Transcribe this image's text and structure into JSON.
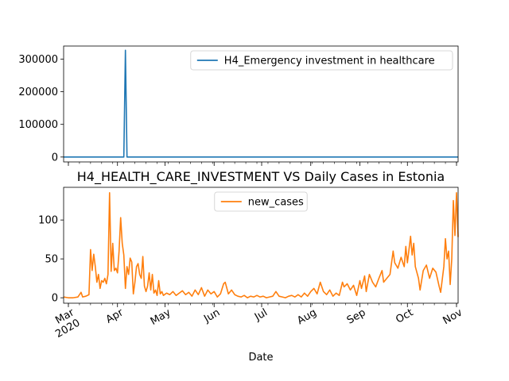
{
  "chart_data": [
    {
      "type": "line",
      "title": "",
      "xlabel": "",
      "ylabel": "",
      "ylim": [
        -15000,
        340000
      ],
      "yticks": [
        0,
        100000,
        200000,
        300000
      ],
      "ytick_labels": [
        "0",
        "100000",
        "200000",
        "300000"
      ],
      "legend": "top-right",
      "grid": false,
      "series": [
        {
          "name": "H4_Emergency investment in healthcare",
          "color": "#1f77b4",
          "points": [
            [
              "2020-02-27",
              0
            ],
            [
              "2020-04-05",
              0
            ],
            [
              "2020-04-06",
              327000
            ],
            [
              "2020-04-07",
              0
            ],
            [
              "2020-11-02",
              0
            ]
          ]
        }
      ]
    },
    {
      "type": "line",
      "title": "H4_HEALTH_CARE_INVESTMENT VS Daily Cases in Estonia",
      "xlabel": "Date",
      "ylabel": "",
      "ylim": [
        -7,
        142
      ],
      "yticks": [
        0,
        50,
        100
      ],
      "ytick_labels": [
        "0",
        "50",
        "100"
      ],
      "xlim": [
        "2020-02-27",
        "2020-11-02"
      ],
      "xticks": [
        "2020-03-01",
        "2020-04-01",
        "2020-05-01",
        "2020-06-01",
        "2020-07-01",
        "2020-08-01",
        "2020-09-01",
        "2020-10-01",
        "2020-11-01"
      ],
      "xtick_labels": [
        "Mar\n2020",
        "Apr",
        "May",
        "Jun",
        "Jul",
        "Aug",
        "Sep",
        "Oct",
        "Nov"
      ],
      "legend": "top-center",
      "grid": false,
      "series": [
        {
          "name": "new_cases",
          "color": "#ff7f0e",
          "points": [
            [
              "2020-02-27",
              1
            ],
            [
              "2020-03-01",
              0
            ],
            [
              "2020-03-04",
              0
            ],
            [
              "2020-03-07",
              1
            ],
            [
              "2020-03-09",
              7
            ],
            [
              "2020-03-10",
              1
            ],
            [
              "2020-03-12",
              2
            ],
            [
              "2020-03-14",
              4
            ],
            [
              "2020-03-15",
              62
            ],
            [
              "2020-03-16",
              35
            ],
            [
              "2020-03-17",
              56
            ],
            [
              "2020-03-18",
              40
            ],
            [
              "2020-03-19",
              20
            ],
            [
              "2020-03-20",
              30
            ],
            [
              "2020-03-21",
              12
            ],
            [
              "2020-03-22",
              22
            ],
            [
              "2020-03-23",
              20
            ],
            [
              "2020-03-24",
              25
            ],
            [
              "2020-03-25",
              18
            ],
            [
              "2020-03-26",
              30
            ],
            [
              "2020-03-27",
              135
            ],
            [
              "2020-03-28",
              34
            ],
            [
              "2020-03-29",
              70
            ],
            [
              "2020-03-30",
              35
            ],
            [
              "2020-03-31",
              38
            ],
            [
              "2020-04-01",
              32
            ],
            [
              "2020-04-02",
              60
            ],
            [
              "2020-04-03",
              103
            ],
            [
              "2020-04-04",
              70
            ],
            [
              "2020-04-05",
              55
            ],
            [
              "2020-04-06",
              12
            ],
            [
              "2020-04-07",
              40
            ],
            [
              "2020-04-08",
              30
            ],
            [
              "2020-04-09",
              51
            ],
            [
              "2020-04-10",
              46
            ],
            [
              "2020-04-11",
              5
            ],
            [
              "2020-04-12",
              20
            ],
            [
              "2020-04-13",
              40
            ],
            [
              "2020-04-14",
              44
            ],
            [
              "2020-04-15",
              30
            ],
            [
              "2020-04-16",
              25
            ],
            [
              "2020-04-17",
              53
            ],
            [
              "2020-04-18",
              15
            ],
            [
              "2020-04-19",
              8
            ],
            [
              "2020-04-20",
              15
            ],
            [
              "2020-04-21",
              32
            ],
            [
              "2020-04-22",
              10
            ],
            [
              "2020-04-23",
              30
            ],
            [
              "2020-04-24",
              6
            ],
            [
              "2020-04-25",
              10
            ],
            [
              "2020-04-26",
              3
            ],
            [
              "2020-04-27",
              22
            ],
            [
              "2020-04-28",
              5
            ],
            [
              "2020-04-29",
              8
            ],
            [
              "2020-04-30",
              3
            ],
            [
              "2020-05-02",
              6
            ],
            [
              "2020-05-04",
              4
            ],
            [
              "2020-05-06",
              8
            ],
            [
              "2020-05-08",
              3
            ],
            [
              "2020-05-10",
              6
            ],
            [
              "2020-05-12",
              9
            ],
            [
              "2020-05-14",
              4
            ],
            [
              "2020-05-16",
              7
            ],
            [
              "2020-05-18",
              2
            ],
            [
              "2020-05-20",
              10
            ],
            [
              "2020-05-22",
              4
            ],
            [
              "2020-05-24",
              13
            ],
            [
              "2020-05-26",
              2
            ],
            [
              "2020-05-28",
              10
            ],
            [
              "2020-05-30",
              5
            ],
            [
              "2020-06-01",
              8
            ],
            [
              "2020-06-03",
              1
            ],
            [
              "2020-06-05",
              5
            ],
            [
              "2020-06-07",
              18
            ],
            [
              "2020-06-08",
              20
            ],
            [
              "2020-06-10",
              5
            ],
            [
              "2020-06-12",
              10
            ],
            [
              "2020-06-14",
              4
            ],
            [
              "2020-06-16",
              2
            ],
            [
              "2020-06-18",
              1
            ],
            [
              "2020-06-20",
              3
            ],
            [
              "2020-06-22",
              0
            ],
            [
              "2020-06-24",
              2
            ],
            [
              "2020-06-26",
              1
            ],
            [
              "2020-06-28",
              3
            ],
            [
              "2020-06-30",
              1
            ],
            [
              "2020-07-02",
              2
            ],
            [
              "2020-07-04",
              0
            ],
            [
              "2020-07-06",
              1
            ],
            [
              "2020-07-08",
              2
            ],
            [
              "2020-07-10",
              8
            ],
            [
              "2020-07-12",
              2
            ],
            [
              "2020-07-14",
              1
            ],
            [
              "2020-07-16",
              0
            ],
            [
              "2020-07-18",
              2
            ],
            [
              "2020-07-20",
              3
            ],
            [
              "2020-07-22",
              1
            ],
            [
              "2020-07-24",
              4
            ],
            [
              "2020-07-26",
              1
            ],
            [
              "2020-07-28",
              6
            ],
            [
              "2020-07-30",
              2
            ],
            [
              "2020-08-01",
              8
            ],
            [
              "2020-08-03",
              12
            ],
            [
              "2020-08-05",
              5
            ],
            [
              "2020-08-07",
              20
            ],
            [
              "2020-08-09",
              8
            ],
            [
              "2020-08-11",
              4
            ],
            [
              "2020-08-13",
              10
            ],
            [
              "2020-08-15",
              2
            ],
            [
              "2020-08-17",
              6
            ],
            [
              "2020-08-19",
              3
            ],
            [
              "2020-08-21",
              20
            ],
            [
              "2020-08-22",
              14
            ],
            [
              "2020-08-24",
              18
            ],
            [
              "2020-08-26",
              10
            ],
            [
              "2020-08-28",
              16
            ],
            [
              "2020-08-30",
              3
            ],
            [
              "2020-09-01",
              22
            ],
            [
              "2020-09-02",
              12
            ],
            [
              "2020-09-04",
              28
            ],
            [
              "2020-09-05",
              8
            ],
            [
              "2020-09-07",
              30
            ],
            [
              "2020-09-09",
              20
            ],
            [
              "2020-09-11",
              14
            ],
            [
              "2020-09-13",
              25
            ],
            [
              "2020-09-15",
              35
            ],
            [
              "2020-09-16",
              20
            ],
            [
              "2020-09-18",
              25
            ],
            [
              "2020-09-20",
              30
            ],
            [
              "2020-09-22",
              60
            ],
            [
              "2020-09-23",
              45
            ],
            [
              "2020-09-25",
              38
            ],
            [
              "2020-09-27",
              52
            ],
            [
              "2020-09-29",
              40
            ],
            [
              "2020-09-30",
              66
            ],
            [
              "2020-10-01",
              45
            ],
            [
              "2020-10-03",
              79
            ],
            [
              "2020-10-04",
              55
            ],
            [
              "2020-10-05",
              70
            ],
            [
              "2020-10-06",
              40
            ],
            [
              "2020-10-08",
              25
            ],
            [
              "2020-10-09",
              10
            ],
            [
              "2020-10-11",
              35
            ],
            [
              "2020-10-13",
              42
            ],
            [
              "2020-10-15",
              25
            ],
            [
              "2020-10-17",
              38
            ],
            [
              "2020-10-19",
              33
            ],
            [
              "2020-10-21",
              15
            ],
            [
              "2020-10-22",
              7
            ],
            [
              "2020-10-24",
              40
            ],
            [
              "2020-10-25",
              76
            ],
            [
              "2020-10-26",
              50
            ],
            [
              "2020-10-27",
              60
            ],
            [
              "2020-10-28",
              17
            ],
            [
              "2020-10-29",
              50
            ],
            [
              "2020-10-30",
              125
            ],
            [
              "2020-10-31",
              80
            ],
            [
              "2020-11-01",
              135
            ],
            [
              "2020-11-02",
              78
            ]
          ]
        }
      ]
    }
  ]
}
